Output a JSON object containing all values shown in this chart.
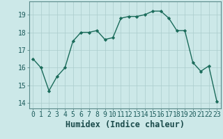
{
  "x": [
    0,
    1,
    2,
    3,
    4,
    5,
    6,
    7,
    8,
    9,
    10,
    11,
    12,
    13,
    14,
    15,
    16,
    17,
    18,
    19,
    20,
    21,
    22,
    23
  ],
  "y": [
    16.5,
    16.0,
    14.7,
    15.5,
    16.0,
    17.5,
    18.0,
    18.0,
    18.1,
    17.6,
    17.7,
    18.8,
    18.9,
    18.9,
    19.0,
    19.2,
    19.2,
    18.8,
    18.1,
    18.1,
    16.3,
    15.8,
    16.1,
    14.1
  ],
  "line_color": "#1a6b5a",
  "marker": "D",
  "marker_size": 2.2,
  "bg_color": "#cce8e8",
  "grid_color": "#aacccc",
  "xlabel": "Humidex (Indice chaleur)",
  "ylim": [
    13.7,
    19.75
  ],
  "xlim": [
    -0.5,
    23.5
  ],
  "yticks": [
    14,
    15,
    16,
    17,
    18,
    19
  ],
  "xticks": [
    0,
    1,
    2,
    3,
    4,
    5,
    6,
    7,
    8,
    9,
    10,
    11,
    12,
    13,
    14,
    15,
    16,
    17,
    18,
    19,
    20,
    21,
    22,
    23
  ],
  "xlabel_fontsize": 8.5,
  "tick_fontsize": 7.0,
  "line_width": 1.0
}
